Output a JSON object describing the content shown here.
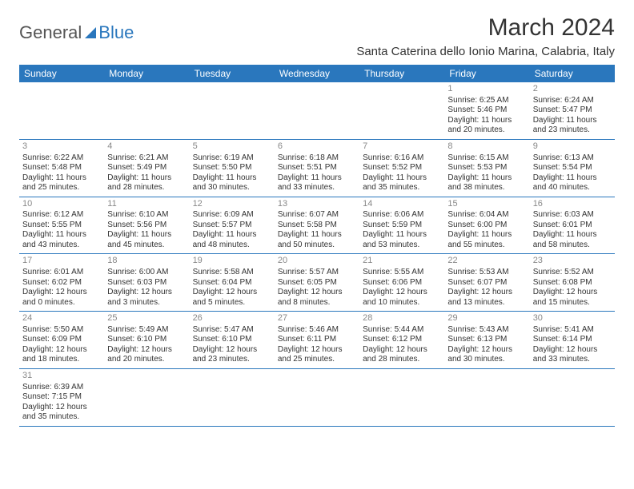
{
  "logo": {
    "part1": "General",
    "part2": "Blue"
  },
  "title": "March 2024",
  "location": "Santa Caterina dello Ionio Marina, Calabria, Italy",
  "colors": {
    "header_bg": "#2a77bd",
    "header_text": "#ffffff",
    "grid_line": "#2a77bd",
    "text": "#333333",
    "daynum": "#888888",
    "bg": "#ffffff"
  },
  "weekdays": [
    "Sunday",
    "Monday",
    "Tuesday",
    "Wednesday",
    "Thursday",
    "Friday",
    "Saturday"
  ],
  "weeks": [
    [
      null,
      null,
      null,
      null,
      null,
      {
        "day": "1",
        "sunrise": "Sunrise: 6:25 AM",
        "sunset": "Sunset: 5:46 PM",
        "dl1": "Daylight: 11 hours",
        "dl2": "and 20 minutes."
      },
      {
        "day": "2",
        "sunrise": "Sunrise: 6:24 AM",
        "sunset": "Sunset: 5:47 PM",
        "dl1": "Daylight: 11 hours",
        "dl2": "and 23 minutes."
      }
    ],
    [
      {
        "day": "3",
        "sunrise": "Sunrise: 6:22 AM",
        "sunset": "Sunset: 5:48 PM",
        "dl1": "Daylight: 11 hours",
        "dl2": "and 25 minutes."
      },
      {
        "day": "4",
        "sunrise": "Sunrise: 6:21 AM",
        "sunset": "Sunset: 5:49 PM",
        "dl1": "Daylight: 11 hours",
        "dl2": "and 28 minutes."
      },
      {
        "day": "5",
        "sunrise": "Sunrise: 6:19 AM",
        "sunset": "Sunset: 5:50 PM",
        "dl1": "Daylight: 11 hours",
        "dl2": "and 30 minutes."
      },
      {
        "day": "6",
        "sunrise": "Sunrise: 6:18 AM",
        "sunset": "Sunset: 5:51 PM",
        "dl1": "Daylight: 11 hours",
        "dl2": "and 33 minutes."
      },
      {
        "day": "7",
        "sunrise": "Sunrise: 6:16 AM",
        "sunset": "Sunset: 5:52 PM",
        "dl1": "Daylight: 11 hours",
        "dl2": "and 35 minutes."
      },
      {
        "day": "8",
        "sunrise": "Sunrise: 6:15 AM",
        "sunset": "Sunset: 5:53 PM",
        "dl1": "Daylight: 11 hours",
        "dl2": "and 38 minutes."
      },
      {
        "day": "9",
        "sunrise": "Sunrise: 6:13 AM",
        "sunset": "Sunset: 5:54 PM",
        "dl1": "Daylight: 11 hours",
        "dl2": "and 40 minutes."
      }
    ],
    [
      {
        "day": "10",
        "sunrise": "Sunrise: 6:12 AM",
        "sunset": "Sunset: 5:55 PM",
        "dl1": "Daylight: 11 hours",
        "dl2": "and 43 minutes."
      },
      {
        "day": "11",
        "sunrise": "Sunrise: 6:10 AM",
        "sunset": "Sunset: 5:56 PM",
        "dl1": "Daylight: 11 hours",
        "dl2": "and 45 minutes."
      },
      {
        "day": "12",
        "sunrise": "Sunrise: 6:09 AM",
        "sunset": "Sunset: 5:57 PM",
        "dl1": "Daylight: 11 hours",
        "dl2": "and 48 minutes."
      },
      {
        "day": "13",
        "sunrise": "Sunrise: 6:07 AM",
        "sunset": "Sunset: 5:58 PM",
        "dl1": "Daylight: 11 hours",
        "dl2": "and 50 minutes."
      },
      {
        "day": "14",
        "sunrise": "Sunrise: 6:06 AM",
        "sunset": "Sunset: 5:59 PM",
        "dl1": "Daylight: 11 hours",
        "dl2": "and 53 minutes."
      },
      {
        "day": "15",
        "sunrise": "Sunrise: 6:04 AM",
        "sunset": "Sunset: 6:00 PM",
        "dl1": "Daylight: 11 hours",
        "dl2": "and 55 minutes."
      },
      {
        "day": "16",
        "sunrise": "Sunrise: 6:03 AM",
        "sunset": "Sunset: 6:01 PM",
        "dl1": "Daylight: 11 hours",
        "dl2": "and 58 minutes."
      }
    ],
    [
      {
        "day": "17",
        "sunrise": "Sunrise: 6:01 AM",
        "sunset": "Sunset: 6:02 PM",
        "dl1": "Daylight: 12 hours",
        "dl2": "and 0 minutes."
      },
      {
        "day": "18",
        "sunrise": "Sunrise: 6:00 AM",
        "sunset": "Sunset: 6:03 PM",
        "dl1": "Daylight: 12 hours",
        "dl2": "and 3 minutes."
      },
      {
        "day": "19",
        "sunrise": "Sunrise: 5:58 AM",
        "sunset": "Sunset: 6:04 PM",
        "dl1": "Daylight: 12 hours",
        "dl2": "and 5 minutes."
      },
      {
        "day": "20",
        "sunrise": "Sunrise: 5:57 AM",
        "sunset": "Sunset: 6:05 PM",
        "dl1": "Daylight: 12 hours",
        "dl2": "and 8 minutes."
      },
      {
        "day": "21",
        "sunrise": "Sunrise: 5:55 AM",
        "sunset": "Sunset: 6:06 PM",
        "dl1": "Daylight: 12 hours",
        "dl2": "and 10 minutes."
      },
      {
        "day": "22",
        "sunrise": "Sunrise: 5:53 AM",
        "sunset": "Sunset: 6:07 PM",
        "dl1": "Daylight: 12 hours",
        "dl2": "and 13 minutes."
      },
      {
        "day": "23",
        "sunrise": "Sunrise: 5:52 AM",
        "sunset": "Sunset: 6:08 PM",
        "dl1": "Daylight: 12 hours",
        "dl2": "and 15 minutes."
      }
    ],
    [
      {
        "day": "24",
        "sunrise": "Sunrise: 5:50 AM",
        "sunset": "Sunset: 6:09 PM",
        "dl1": "Daylight: 12 hours",
        "dl2": "and 18 minutes."
      },
      {
        "day": "25",
        "sunrise": "Sunrise: 5:49 AM",
        "sunset": "Sunset: 6:10 PM",
        "dl1": "Daylight: 12 hours",
        "dl2": "and 20 minutes."
      },
      {
        "day": "26",
        "sunrise": "Sunrise: 5:47 AM",
        "sunset": "Sunset: 6:10 PM",
        "dl1": "Daylight: 12 hours",
        "dl2": "and 23 minutes."
      },
      {
        "day": "27",
        "sunrise": "Sunrise: 5:46 AM",
        "sunset": "Sunset: 6:11 PM",
        "dl1": "Daylight: 12 hours",
        "dl2": "and 25 minutes."
      },
      {
        "day": "28",
        "sunrise": "Sunrise: 5:44 AM",
        "sunset": "Sunset: 6:12 PM",
        "dl1": "Daylight: 12 hours",
        "dl2": "and 28 minutes."
      },
      {
        "day": "29",
        "sunrise": "Sunrise: 5:43 AM",
        "sunset": "Sunset: 6:13 PM",
        "dl1": "Daylight: 12 hours",
        "dl2": "and 30 minutes."
      },
      {
        "day": "30",
        "sunrise": "Sunrise: 5:41 AM",
        "sunset": "Sunset: 6:14 PM",
        "dl1": "Daylight: 12 hours",
        "dl2": "and 33 minutes."
      }
    ],
    [
      {
        "day": "31",
        "sunrise": "Sunrise: 6:39 AM",
        "sunset": "Sunset: 7:15 PM",
        "dl1": "Daylight: 12 hours",
        "dl2": "and 35 minutes."
      },
      null,
      null,
      null,
      null,
      null,
      null
    ]
  ]
}
